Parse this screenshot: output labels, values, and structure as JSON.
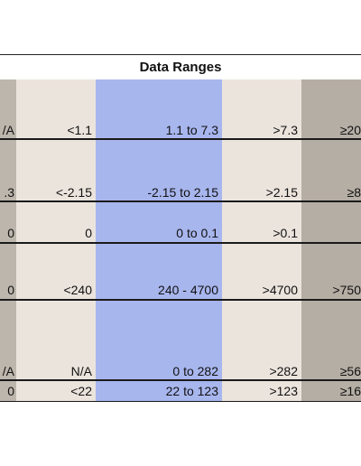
{
  "header": {
    "title": "Data Ranges"
  },
  "colors": {
    "col_gray": "#bdb6ac",
    "col_light": "#ebe4dd",
    "col_blue": "#a8b6ee",
    "col_gray_right": "#b5aea4"
  },
  "rows": [
    {
      "c0": "/A",
      "c1": "<1.1",
      "c2": "1.1 to 7.3",
      "c3": ">7.3",
      "c4": "≥20"
    },
    {
      "c0": ".3",
      "c1": "<-2.15",
      "c2": "-2.15 to 2.15",
      "c3": ">2.15",
      "c4": "≥8"
    },
    {
      "c0": "0",
      "c1": "0",
      "c2": "0 to 0.1",
      "c3": ">0.1",
      "c4": ""
    },
    {
      "c0": "0",
      "c1": "<240",
      "c2": "240 - 4700",
      "c3": ">4700",
      "c4": ">750"
    },
    {
      "c0": "/A",
      "c1": "N/A",
      "c2": "0 to 282",
      "c3": ">282",
      "c4": "≥56"
    },
    {
      "c0": "0",
      "c1": "<22",
      "c2": "22  to 123",
      "c3": ">123",
      "c4": "≥16"
    }
  ]
}
